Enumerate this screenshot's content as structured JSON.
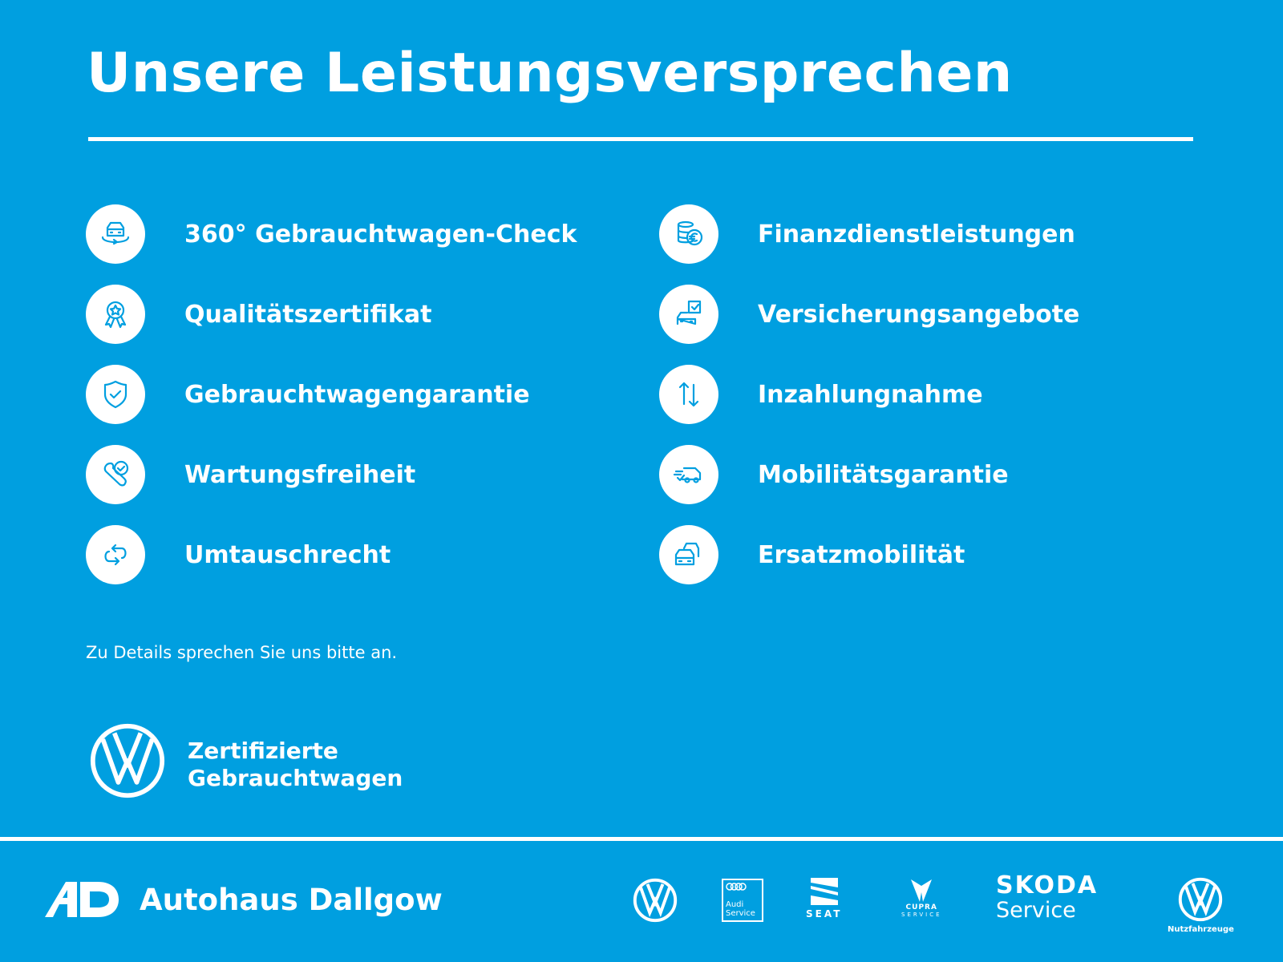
{
  "title": "Unsere Leistungsversprechen",
  "left_items": [
    {
      "label": "360° Gebrauchtwagen-Check",
      "icon": "car-360-icon"
    },
    {
      "label": "Qualitätszertifikat",
      "icon": "award-rosette-icon"
    },
    {
      "label": "Gebrauchtwagengarantie",
      "icon": "shield-check-icon"
    },
    {
      "label": "Wartungsfreiheit",
      "icon": "wrench-check-icon"
    },
    {
      "label": "Umtauschrecht",
      "icon": "exchange-arrows-icon"
    }
  ],
  "right_items": [
    {
      "label": "Finanzdienstleistungen",
      "icon": "coins-euro-icon"
    },
    {
      "label": "Versicherungsangebote",
      "icon": "car-insurance-icon"
    },
    {
      "label": "Inzahlungnahme",
      "icon": "up-down-arrows-icon"
    },
    {
      "label": "Mobilitätsgarantie",
      "icon": "fast-van-icon"
    },
    {
      "label": "Ersatzmobilität",
      "icon": "two-cars-icon"
    }
  ],
  "note": "Zu Details sprechen Sie uns bitte an.",
  "certified": {
    "line1": "Zertifizierte",
    "line2": "Gebrauchtwagen"
  },
  "footer": {
    "dealer_logo": "AD",
    "dealer_name": "Autohaus Dallgow",
    "brands": {
      "audi": "Audi Service",
      "seat": "SEAT",
      "cupra": "CUPRA",
      "cupra_sub": "SERVICE",
      "skoda": "SKODA",
      "skoda_sub": "Service",
      "vwn": "Nutzfahrzeuge"
    }
  },
  "colors": {
    "background": "#009fe0",
    "foreground": "#ffffff"
  }
}
